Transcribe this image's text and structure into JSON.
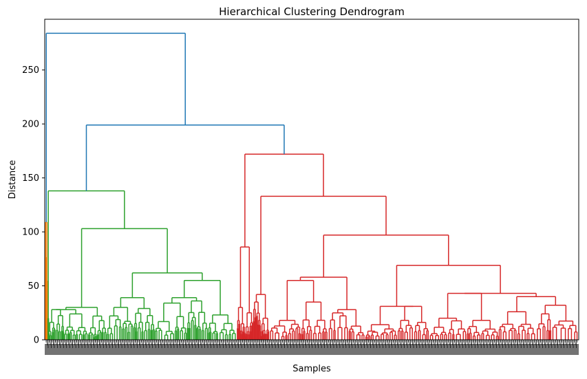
{
  "chart_data": {
    "type": "dendrogram",
    "title": "Hierarchical Clustering Dendrogram",
    "xlabel": "Samples",
    "ylabel": "Distance",
    "ylim": [
      0,
      297
    ],
    "yticks": [
      0,
      50,
      100,
      150,
      200,
      250
    ],
    "grid": false,
    "colors": {
      "above_threshold": "#1f77b4",
      "cluster_1": "#ff7f0e",
      "cluster_2": "#2ca02c",
      "cluster_3": "#d62728"
    },
    "clusters": [
      {
        "color_key": "cluster_1",
        "sample_fraction": [
          0.0,
          0.005
        ],
        "top_height": 109
      },
      {
        "color_key": "cluster_2",
        "sample_fraction": [
          0.005,
          0.36
        ],
        "top_height": 138
      },
      {
        "color_key": "cluster_3",
        "sample_fraction": [
          0.36,
          1.0
        ],
        "top_height": 172
      }
    ],
    "top_merges": [
      {
        "height": 284,
        "joins": [
          "cluster_1",
          "merge_200"
        ]
      },
      {
        "height": 199,
        "id": "merge_200",
        "joins": [
          "cluster_2",
          "cluster_3"
        ]
      }
    ],
    "cluster_2_merges": [
      {
        "height": 138
      },
      {
        "height": 103
      },
      {
        "height": 62
      },
      {
        "height": 55
      },
      {
        "height": 39
      },
      {
        "height": 39
      },
      {
        "height": 28
      }
    ],
    "cluster_3_merges": [
      {
        "height": 172
      },
      {
        "height": 133
      },
      {
        "height": 97
      },
      {
        "height": 86
      },
      {
        "height": 69
      },
      {
        "height": 58
      },
      {
        "height": 55
      },
      {
        "height": 43
      },
      {
        "height": 40
      },
      {
        "height": 32
      },
      {
        "height": 31
      }
    ]
  }
}
